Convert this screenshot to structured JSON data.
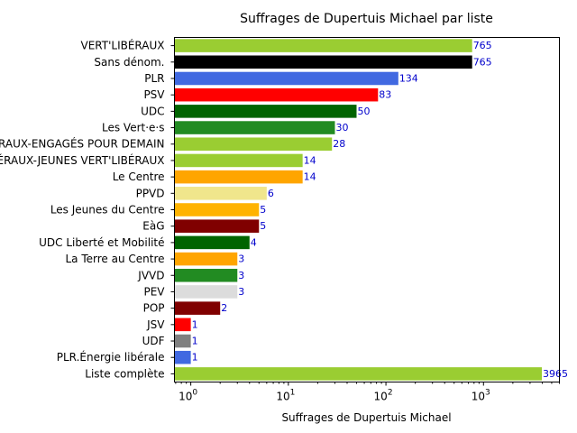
{
  "chart_data": {
    "type": "bar",
    "orientation": "horizontal",
    "title": "Suffrages de Dupertuis Michael par liste",
    "xlabel": "Suffrages de Dupertuis Michael",
    "ylabel": "",
    "xscale": "log",
    "xlim": [
      0.68,
      6000
    ],
    "xticks": [
      {
        "value": 1,
        "base": "10",
        "exp": "0"
      },
      {
        "value": 10,
        "base": "10",
        "exp": "1"
      },
      {
        "value": 100,
        "base": "10",
        "exp": "2"
      },
      {
        "value": 1000,
        "base": "10",
        "exp": "3"
      }
    ],
    "grid": false,
    "categories": [
      "VERT'LIBÉRAUX",
      "Sans dénom.",
      "PLR",
      "PSV",
      "UDC",
      "Les Vert·e·s",
      "VERT'LIBÉRAUX-ENGAGÉS POUR DEMAIN",
      "VERT'LIBÉRAUX-JEUNES VERT'LIBÉRAUX",
      "Le Centre",
      "PPVD",
      "Les Jeunes du Centre",
      "EàG",
      "UDC Liberté et Mobilité",
      "La Terre au Centre",
      "JVVD",
      "PEV",
      "POP",
      "JSV",
      "UDF",
      "PLR.Énergie libérale",
      "Liste complète"
    ],
    "values": [
      765,
      765,
      134,
      83,
      50,
      30,
      28,
      14,
      14,
      6,
      5,
      5,
      4,
      3,
      3,
      3,
      2,
      1,
      1,
      1,
      3965
    ],
    "colors": [
      "#9acd32",
      "#000000",
      "#4169e1",
      "#ff0000",
      "#006400",
      "#228b22",
      "#9acd32",
      "#9acd32",
      "#ffa500",
      "#f0e68c",
      "#ffb300",
      "#800000",
      "#006400",
      "#ffa500",
      "#228b22",
      "#dcdcdc",
      "#800000",
      "#ff0000",
      "#808080",
      "#4169e1",
      "#9acd32"
    ],
    "value_label_color": "#0000cc"
  }
}
